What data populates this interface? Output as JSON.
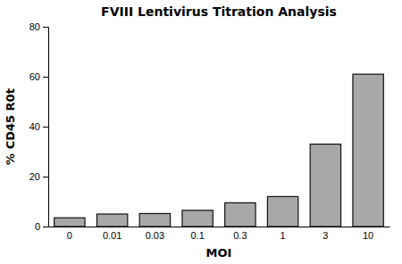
{
  "chart_data": {
    "type": "bar",
    "title": "FVIII Lentivirus Titration Analysis",
    "xlabel": "MOI",
    "ylabel": "% CD45 R0t",
    "categories": [
      "0",
      "0.01",
      "0.03",
      "0.1",
      "0.3",
      "1",
      "3",
      "10"
    ],
    "values": [
      3.5,
      5.0,
      5.2,
      6.5,
      9.5,
      12.0,
      33.0,
      61.0
    ],
    "color": "#a8a8a8",
    "ylim": [
      0,
      80
    ],
    "yticks": [
      0,
      20,
      40,
      60,
      80
    ],
    "grid": false
  }
}
